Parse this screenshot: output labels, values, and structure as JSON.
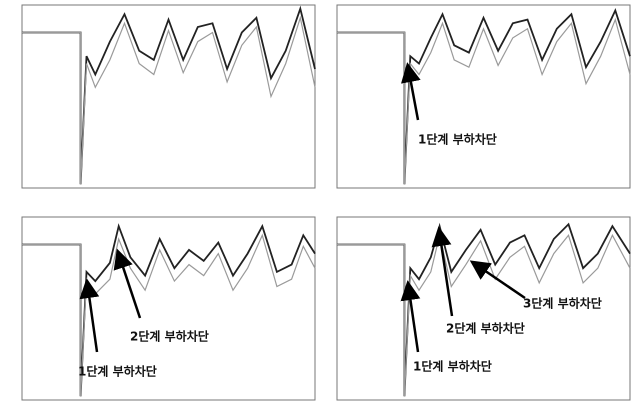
{
  "chart_data": [
    {
      "type": "line",
      "xlim": [
        0,
        10
      ],
      "ylim": [
        0,
        1
      ],
      "x": [
        0,
        2,
        2,
        2.2,
        2.5,
        3,
        3.5,
        4,
        4.5,
        5,
        5.5,
        6,
        6.5,
        7,
        7.5,
        8,
        8.5,
        9,
        9.5,
        10
      ],
      "series": [
        {
          "color": "#222222",
          "values": [
            0.85,
            0.85,
            0.02,
            0.72,
            0.62,
            0.8,
            0.95,
            0.75,
            0.7,
            0.92,
            0.7,
            0.88,
            0.9,
            0.65,
            0.85,
            0.93,
            0.6,
            0.75,
            0.98,
            0.65
          ]
        },
        {
          "color": "#9a9a9a",
          "values": [
            0.85,
            0.85,
            0.02,
            0.68,
            0.55,
            0.7,
            0.9,
            0.68,
            0.62,
            0.86,
            0.63,
            0.8,
            0.85,
            0.58,
            0.78,
            0.88,
            0.5,
            0.68,
            0.93,
            0.55
          ]
        }
      ]
    },
    {
      "type": "line",
      "xlim": [
        0,
        10
      ],
      "ylim": [
        0,
        1
      ],
      "x": [
        0,
        2.3,
        2.3,
        2.5,
        2.8,
        3.2,
        3.6,
        4,
        4.5,
        5,
        5.5,
        6,
        6.5,
        7,
        7.5,
        8,
        8.5,
        9,
        9.5,
        10
      ],
      "series": [
        {
          "color": "#222222",
          "values": [
            0.85,
            0.85,
            0.02,
            0.72,
            0.68,
            0.82,
            0.95,
            0.78,
            0.74,
            0.93,
            0.75,
            0.9,
            0.92,
            0.7,
            0.87,
            0.95,
            0.66,
            0.8,
            0.97,
            0.72
          ]
        },
        {
          "color": "#9a9a9a",
          "values": [
            0.85,
            0.85,
            0.02,
            0.68,
            0.62,
            0.74,
            0.9,
            0.7,
            0.66,
            0.87,
            0.67,
            0.82,
            0.87,
            0.62,
            0.8,
            0.9,
            0.57,
            0.72,
            0.92,
            0.62
          ]
        }
      ],
      "annotations": [
        {
          "text": "1단계 부하차단"
        }
      ]
    },
    {
      "type": "line",
      "xlim": [
        0,
        10
      ],
      "ylim": [
        0,
        1
      ],
      "x": [
        0,
        2,
        2,
        2.2,
        2.5,
        3,
        3.3,
        3.7,
        4.2,
        4.7,
        5.2,
        5.7,
        6.2,
        6.7,
        7.2,
        7.7,
        8.2,
        8.7,
        9.2,
        9.6,
        10
      ],
      "series": [
        {
          "color": "#222222",
          "values": [
            0.85,
            0.85,
            0.02,
            0.7,
            0.65,
            0.75,
            0.95,
            0.78,
            0.68,
            0.88,
            0.72,
            0.82,
            0.76,
            0.86,
            0.68,
            0.8,
            0.95,
            0.7,
            0.74,
            0.9,
            0.8
          ]
        },
        {
          "color": "#9a9a9a",
          "values": [
            0.85,
            0.85,
            0.02,
            0.66,
            0.58,
            0.66,
            0.88,
            0.72,
            0.6,
            0.82,
            0.65,
            0.74,
            0.68,
            0.8,
            0.6,
            0.72,
            0.9,
            0.62,
            0.66,
            0.84,
            0.72
          ]
        }
      ],
      "annotations": [
        {
          "text": "1단계 부하차단"
        },
        {
          "text": "2단계 부하차단"
        }
      ]
    },
    {
      "type": "line",
      "xlim": [
        0,
        10
      ],
      "ylim": [
        0,
        1
      ],
      "x": [
        0,
        2.3,
        2.3,
        2.5,
        2.8,
        3.2,
        3.5,
        3.9,
        4.4,
        4.9,
        5.4,
        5.9,
        6.4,
        6.9,
        7.4,
        7.9,
        8.4,
        8.9,
        9.4,
        10
      ],
      "series": [
        {
          "color": "#222222",
          "values": [
            0.85,
            0.85,
            0.02,
            0.72,
            0.66,
            0.78,
            0.95,
            0.7,
            0.82,
            0.93,
            0.74,
            0.86,
            0.9,
            0.72,
            0.88,
            0.96,
            0.72,
            0.8,
            0.95,
            0.8
          ]
        },
        {
          "color": "#9a9a9a",
          "values": [
            0.85,
            0.85,
            0.02,
            0.68,
            0.6,
            0.7,
            0.9,
            0.62,
            0.74,
            0.87,
            0.66,
            0.78,
            0.84,
            0.64,
            0.8,
            0.9,
            0.64,
            0.72,
            0.9,
            0.72
          ]
        }
      ],
      "annotations": [
        {
          "text": "1단계 부하차단"
        },
        {
          "text": "2단계 부하차단"
        },
        {
          "text": "3단계 부하차단"
        }
      ]
    }
  ]
}
